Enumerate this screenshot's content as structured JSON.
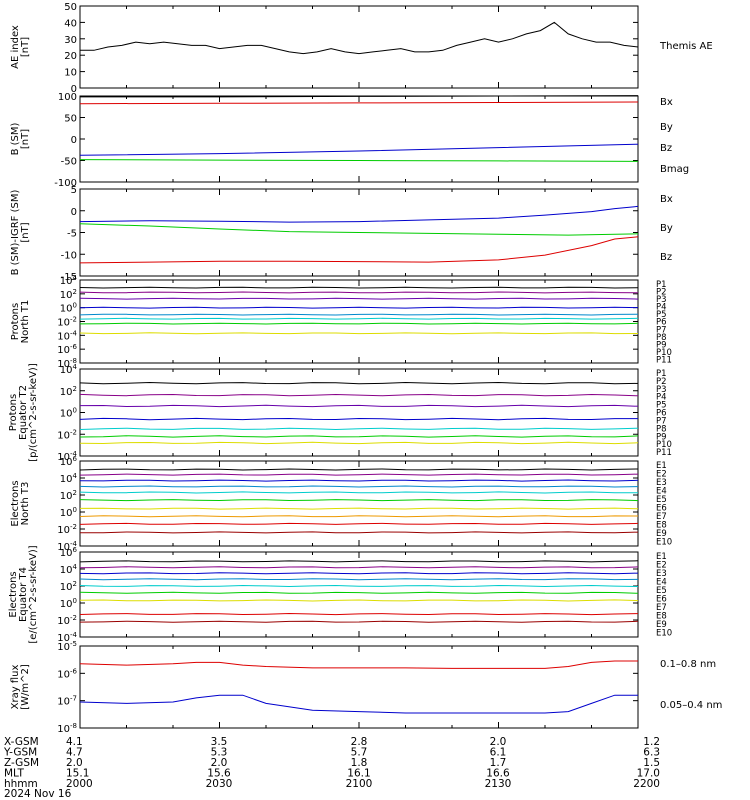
{
  "colors": {
    "black": "#000000",
    "blue": "#0000cc",
    "green": "#00cc00",
    "red": "#dd0000",
    "navy": "#0000aa",
    "purple": "#880088",
    "violet": "#6600aa",
    "teal": "#0088cc",
    "cyan": "#00cccc",
    "lightgreen": "#44dd44",
    "yellow": "#dddd00",
    "orange": "#ee9900",
    "darkred": "#990000"
  },
  "chart_data": [
    {
      "type": "line",
      "panel": "ae",
      "ylabel": "AE index\n[nT]",
      "ylim": [
        0,
        50
      ],
      "yticks": [
        "0",
        "10",
        "20",
        "30",
        "40",
        "50"
      ],
      "series": [
        {
          "name": "Themis AE",
          "color": "#000000",
          "x": [
            0,
            3,
            6,
            9,
            12,
            15,
            18,
            21,
            24,
            27,
            30,
            33,
            36,
            39,
            42,
            45,
            48,
            51,
            54,
            57,
            60,
            63,
            66,
            69,
            72,
            75,
            78,
            81,
            84,
            87,
            90,
            93,
            96,
            99,
            102,
            105,
            108,
            111,
            114,
            117,
            120
          ],
          "y": [
            23,
            23,
            25,
            26,
            28,
            27,
            28,
            27,
            26,
            26,
            24,
            25,
            26,
            26,
            24,
            22,
            21,
            22,
            24,
            22,
            21,
            22,
            23,
            24,
            22,
            22,
            23,
            26,
            28,
            30,
            28,
            30,
            33,
            35,
            40,
            33,
            30,
            28,
            28,
            26,
            25
          ]
        }
      ]
    },
    {
      "type": "line",
      "panel": "bsm",
      "ylabel": "B (SM)\n[nT]",
      "ylim": [
        -100,
        100
      ],
      "yticks": [
        "-100",
        "-50",
        "0",
        "50",
        "100"
      ],
      "series": [
        {
          "name": "Bx",
          "color": "#0000cc",
          "x": [
            0,
            30,
            60,
            90,
            120
          ],
          "y": [
            -38,
            -34,
            -28,
            -20,
            -12
          ]
        },
        {
          "name": "By",
          "color": "#00cc00",
          "x": [
            0,
            30,
            60,
            90,
            120
          ],
          "y": [
            -48,
            -49,
            -50,
            -51,
            -52
          ]
        },
        {
          "name": "Bz",
          "color": "#dd0000",
          "x": [
            0,
            30,
            60,
            90,
            120
          ],
          "y": [
            82,
            83,
            84,
            85,
            86
          ]
        },
        {
          "name": "Bmag",
          "color": "#000000",
          "x": [
            0,
            30,
            60,
            90,
            120
          ],
          "y": [
            98,
            98,
            99,
            100,
            101
          ]
        }
      ]
    },
    {
      "type": "line",
      "panel": "bigrf",
      "ylabel": "B (SM)-IGRF (SM)\n[nT]",
      "ylim": [
        -15,
        5
      ],
      "yticks": [
        "-15",
        "-10",
        "-5",
        "0",
        "5"
      ],
      "series": [
        {
          "name": "Bx",
          "color": "#0000cc",
          "x": [
            0,
            15,
            30,
            45,
            60,
            75,
            90,
            100,
            110,
            115,
            120
          ],
          "y": [
            -2.5,
            -2.3,
            -2.4,
            -2.6,
            -2.5,
            -2.1,
            -1.7,
            -1.0,
            -0.2,
            0.5,
            1.0
          ]
        },
        {
          "name": "By",
          "color": "#00cc00",
          "x": [
            0,
            15,
            30,
            45,
            60,
            75,
            90,
            105,
            120
          ],
          "y": [
            -3.0,
            -3.5,
            -4.2,
            -4.8,
            -5.0,
            -5.2,
            -5.4,
            -5.6,
            -5.3
          ]
        },
        {
          "name": "Bz",
          "color": "#dd0000",
          "x": [
            0,
            15,
            30,
            45,
            60,
            75,
            90,
            100,
            110,
            115,
            120
          ],
          "y": [
            -12.0,
            -11.8,
            -11.6,
            -11.6,
            -11.7,
            -11.8,
            -11.3,
            -10.2,
            -8.0,
            -6.5,
            -6.0
          ]
        }
      ]
    },
    {
      "type": "line",
      "panel": "pnorth",
      "ylabel": "Protons\nNorth T1",
      "ylog": true,
      "ylim": [
        -8,
        4
      ],
      "yticks": [
        "10^4",
        "10^2",
        "10^0",
        "10^-2",
        "10^-4",
        "10^-6",
        "10^-8"
      ],
      "legend": [
        "P1",
        "P2",
        "P3",
        "P4",
        "P5",
        "P6",
        "P7",
        "P8",
        "P9",
        "P10",
        "P11"
      ],
      "series": [
        {
          "name": "P1",
          "color": "#000000",
          "level": 2.9
        },
        {
          "name": "P2",
          "color": "#880088",
          "level": 2.2
        },
        {
          "name": "P3",
          "color": "#6600aa",
          "level": 1.3
        },
        {
          "name": "P4",
          "color": "#0000cc",
          "level": 0.0
        },
        {
          "name": "P5",
          "color": "#0088cc",
          "level": -1.0
        },
        {
          "name": "P6",
          "color": "#00cccc",
          "level": -1.6
        },
        {
          "name": "P7",
          "color": "#00cc00",
          "level": -2.3
        },
        {
          "name": "P8",
          "color": "#dddd00",
          "level": -3.7
        }
      ]
    },
    {
      "type": "line",
      "panel": "peq",
      "ylabel": "Protons\nEquator T2\n[p/(cm^2-s-sr-keV)]",
      "ylog": true,
      "ylim": [
        -4,
        4
      ],
      "yticks": [
        "10^4",
        "10^2",
        "10^0",
        "10^-2",
        "10^-4"
      ],
      "legend": [
        "P1",
        "P2",
        "P3",
        "P4",
        "P5",
        "P6",
        "P7",
        "P8",
        "P9",
        "P10",
        "P11"
      ],
      "series": [
        {
          "name": "P1",
          "color": "#000000",
          "level": 2.7
        },
        {
          "name": "P2",
          "color": "#880088",
          "level": 1.6
        },
        {
          "name": "P3",
          "color": "#6600aa",
          "level": 0.6
        },
        {
          "name": "P4",
          "color": "#0000cc",
          "level": -0.6
        },
        {
          "name": "P5",
          "color": "#00cccc",
          "level": -1.5
        },
        {
          "name": "P6",
          "color": "#00cc00",
          "level": -2.2
        },
        {
          "name": "P7",
          "color": "#dddd00",
          "level": -2.8
        }
      ]
    },
    {
      "type": "line",
      "panel": "enorth",
      "ylabel": "Electrons\nNorth T3",
      "ylog": true,
      "ylim": [
        -4,
        6
      ],
      "yticks": [
        "10^6",
        "10^4",
        "10^2",
        "10^0",
        "10^-2",
        "10^-4"
      ],
      "legend": [
        "E1",
        "E2",
        "E3",
        "E4",
        "E5",
        "E6",
        "E7",
        "E8",
        "E9",
        "E10"
      ],
      "series": [
        {
          "name": "E1",
          "color": "#000000",
          "level": 5.0
        },
        {
          "name": "E2",
          "color": "#880088",
          "level": 4.4
        },
        {
          "name": "E3",
          "color": "#0000cc",
          "level": 3.7
        },
        {
          "name": "E4",
          "color": "#0088cc",
          "level": 3.0
        },
        {
          "name": "E5",
          "color": "#00cccc",
          "level": 2.3
        },
        {
          "name": "E6",
          "color": "#00cc00",
          "level": 1.4
        },
        {
          "name": "E7",
          "color": "#dddd00",
          "level": 0.4
        },
        {
          "name": "E8",
          "color": "#ee9900",
          "level": -0.5
        },
        {
          "name": "E9",
          "color": "#dd0000",
          "level": -1.4
        },
        {
          "name": "E10",
          "color": "#990000",
          "level": -2.4
        }
      ]
    },
    {
      "type": "line",
      "panel": "eeq",
      "ylabel": "Electrons\nEquator T4\n[e/(cm^2-s-sr-keV)]",
      "ylog": true,
      "ylim": [
        -4,
        6
      ],
      "yticks": [
        "10^6",
        "10^4",
        "10^2",
        "10^0",
        "10^-2",
        "10^-4"
      ],
      "legend": [
        "E1",
        "E2",
        "E3",
        "E4",
        "E5",
        "E6",
        "E7",
        "E8",
        "E9",
        "E10"
      ],
      "series": [
        {
          "name": "E1",
          "color": "#000000",
          "level": 4.9
        },
        {
          "name": "E2",
          "color": "#880088",
          "level": 4.2
        },
        {
          "name": "E3",
          "color": "#0000cc",
          "level": 3.5
        },
        {
          "name": "E4",
          "color": "#0088cc",
          "level": 2.8
        },
        {
          "name": "E5",
          "color": "#00cccc",
          "level": 2.0
        },
        {
          "name": "E6",
          "color": "#00cc00",
          "level": 1.2
        },
        {
          "name": "E7",
          "color": "#dddd00",
          "level": 0.3
        },
        {
          "name": "E8",
          "color": "#dd0000",
          "level": -1.3
        },
        {
          "name": "E9",
          "color": "#990000",
          "level": -2.2
        }
      ]
    },
    {
      "type": "line",
      "panel": "xray",
      "ylabel": "Xray flux\n[W/m^2]",
      "ylog": true,
      "ylim": [
        -8,
        -5
      ],
      "yticks": [
        "10^-5",
        "10^-6",
        "10^-7",
        "10^-8"
      ],
      "series": [
        {
          "name": "0.1-0.8 nm",
          "color": "#dd0000",
          "x": [
            0,
            10,
            20,
            25,
            30,
            35,
            40,
            50,
            60,
            70,
            80,
            90,
            100,
            105,
            110,
            115,
            120
          ],
          "y": [
            -5.65,
            -5.7,
            -5.65,
            -5.6,
            -5.6,
            -5.7,
            -5.75,
            -5.8,
            -5.8,
            -5.8,
            -5.82,
            -5.82,
            -5.82,
            -5.75,
            -5.6,
            -5.55,
            -5.55
          ]
        },
        {
          "name": "0.05-0.4 nm",
          "color": "#0000cc",
          "x": [
            0,
            10,
            20,
            25,
            30,
            35,
            40,
            50,
            60,
            70,
            80,
            90,
            100,
            105,
            110,
            115,
            120
          ],
          "y": [
            -7.05,
            -7.1,
            -7.05,
            -6.9,
            -6.8,
            -6.8,
            -7.1,
            -7.35,
            -7.4,
            -7.45,
            -7.45,
            -7.45,
            -7.45,
            -7.4,
            -7.1,
            -6.8,
            -6.8
          ]
        }
      ]
    }
  ],
  "labels": {
    "themis_ae": "Themis AE",
    "bx": "Bx",
    "by": "By",
    "bz": "Bz",
    "bmag": "Bmag",
    "xray_low": "0.1–0.8 nm",
    "xray_high": "0.05–0.4 nm"
  },
  "ephemeris": {
    "rows": [
      {
        "label": "X-GSM",
        "values": [
          "4.1",
          "3.5",
          "2.8",
          "2.0",
          "1.2"
        ]
      },
      {
        "label": "Y-GSM",
        "values": [
          "4.7",
          "5.3",
          "5.7",
          "6.1",
          "6.3"
        ]
      },
      {
        "label": "Z-GSM",
        "values": [
          "2.0",
          "2.0",
          "1.8",
          "1.7",
          "1.5"
        ]
      },
      {
        "label": "MLT",
        "values": [
          "15.1",
          "15.6",
          "16.1",
          "16.6",
          "17.0"
        ]
      },
      {
        "label": "hhmm",
        "values": [
          "2000",
          "2030",
          "2100",
          "2130",
          "2200"
        ]
      }
    ],
    "date": "2024 Nov 16"
  }
}
